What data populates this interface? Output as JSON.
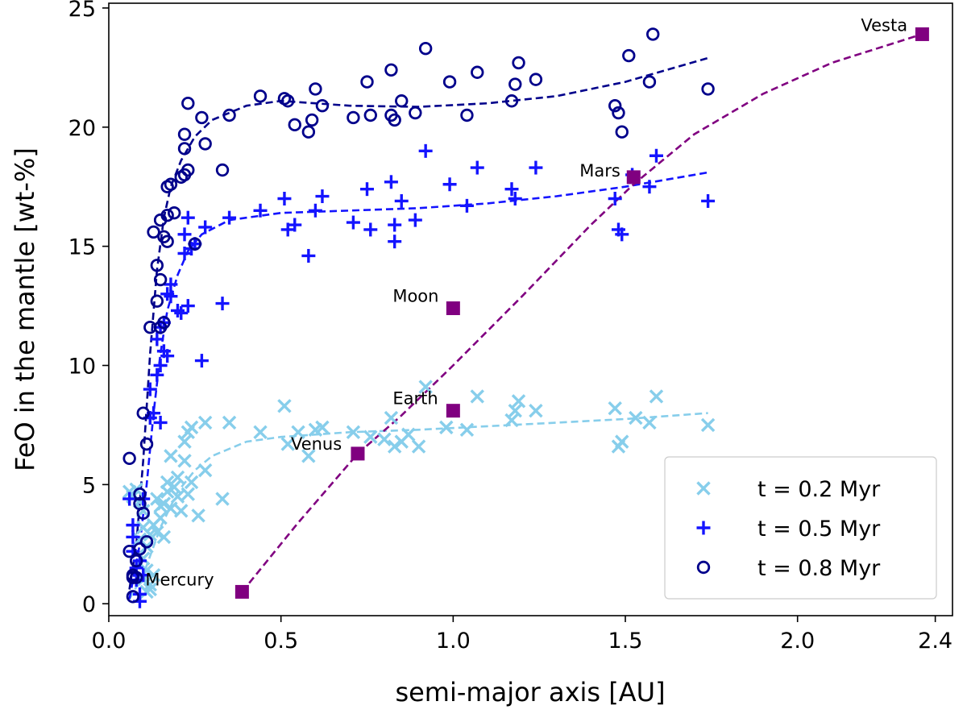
{
  "chart_data": {
    "type": "scatter",
    "xlabel": "semi-major axis [AU]",
    "ylabel": "FeO in the mantle [wt-%]",
    "xlim": [
      0.0,
      2.45
    ],
    "ylim": [
      -0.5,
      25.2
    ],
    "x_ticks": [
      0.0,
      0.5,
      1.0,
      1.5,
      2.0,
      2.4
    ],
    "x_tick_labels": [
      "0.0",
      "0.5",
      "1.0",
      "1.5",
      "2.0",
      "2.4"
    ],
    "y_ticks": [
      0,
      5,
      10,
      15,
      20,
      25
    ],
    "y_tick_labels": [
      "0",
      "5",
      "10",
      "15",
      "20",
      "25"
    ],
    "grid": false,
    "legend": {
      "placement": "bottom-right"
    },
    "series": [
      {
        "name": "t = 0.2 Myr",
        "marker": "x",
        "color": "#87ceeb",
        "points": [
          [
            0.06,
            4.7
          ],
          [
            0.07,
            4.5
          ],
          [
            0.08,
            4.8
          ],
          [
            0.09,
            4.3
          ],
          [
            0.1,
            3.9
          ],
          [
            0.1,
            3.2
          ],
          [
            0.09,
            2.7
          ],
          [
            0.11,
            2.4
          ],
          [
            0.1,
            1.9
          ],
          [
            0.11,
            1.4
          ],
          [
            0.1,
            1.0
          ],
          [
            0.12,
            0.8
          ],
          [
            0.12,
            0.6
          ],
          [
            0.13,
            1.2
          ],
          [
            0.11,
            0.5
          ],
          [
            0.12,
            2.9
          ],
          [
            0.13,
            3.3
          ],
          [
            0.14,
            4.4
          ],
          [
            0.14,
            3.0
          ],
          [
            0.15,
            3.6
          ],
          [
            0.15,
            4.1
          ],
          [
            0.16,
            2.8
          ],
          [
            0.16,
            4.2
          ],
          [
            0.17,
            5.1
          ],
          [
            0.17,
            4.7
          ],
          [
            0.18,
            6.2
          ],
          [
            0.18,
            4.0
          ],
          [
            0.19,
            4.9
          ],
          [
            0.2,
            5.3
          ],
          [
            0.2,
            4.5
          ],
          [
            0.21,
            3.9
          ],
          [
            0.22,
            6.8
          ],
          [
            0.22,
            6.0
          ],
          [
            0.23,
            7.2
          ],
          [
            0.23,
            4.6
          ],
          [
            0.24,
            7.4
          ],
          [
            0.24,
            5.1
          ],
          [
            0.26,
            3.7
          ],
          [
            0.28,
            7.6
          ],
          [
            0.28,
            5.6
          ],
          [
            0.33,
            4.4
          ],
          [
            0.35,
            7.6
          ],
          [
            0.44,
            7.2
          ],
          [
            0.51,
            8.3
          ],
          [
            0.52,
            6.7
          ],
          [
            0.55,
            7.2
          ],
          [
            0.58,
            6.2
          ],
          [
            0.6,
            7.3
          ],
          [
            0.62,
            7.4
          ],
          [
            0.71,
            7.2
          ],
          [
            0.76,
            7.0
          ],
          [
            0.8,
            6.9
          ],
          [
            0.82,
            7.8
          ],
          [
            0.83,
            6.6
          ],
          [
            0.85,
            6.8
          ],
          [
            0.87,
            7.1
          ],
          [
            0.9,
            6.6
          ],
          [
            0.92,
            9.1
          ],
          [
            0.98,
            7.4
          ],
          [
            1.04,
            7.3
          ],
          [
            1.07,
            8.7
          ],
          [
            1.17,
            7.7
          ],
          [
            1.18,
            8.1
          ],
          [
            1.19,
            8.5
          ],
          [
            1.24,
            8.1
          ],
          [
            1.47,
            8.2
          ],
          [
            1.48,
            6.6
          ],
          [
            1.49,
            6.8
          ],
          [
            1.53,
            7.8
          ],
          [
            1.57,
            7.6
          ],
          [
            1.59,
            8.7
          ],
          [
            1.74,
            7.5
          ]
        ]
      },
      {
        "name": "t = 0.5 Myr",
        "marker": "+",
        "color": "#1414ff",
        "points": [
          [
            0.06,
            4.4
          ],
          [
            0.07,
            3.3
          ],
          [
            0.07,
            2.8
          ],
          [
            0.07,
            2.2
          ],
          [
            0.08,
            1.5
          ],
          [
            0.08,
            1.0
          ],
          [
            0.09,
            0.4
          ],
          [
            0.09,
            0.1
          ],
          [
            0.09,
            1.8
          ],
          [
            0.1,
            4.4
          ],
          [
            0.1,
            1.2
          ],
          [
            0.12,
            7.8
          ],
          [
            0.12,
            9.0
          ],
          [
            0.13,
            8.0
          ],
          [
            0.14,
            11.1
          ],
          [
            0.14,
            9.6
          ],
          [
            0.15,
            7.6
          ],
          [
            0.15,
            10.0
          ],
          [
            0.15,
            11.6
          ],
          [
            0.16,
            11.8
          ],
          [
            0.16,
            10.6
          ],
          [
            0.17,
            10.4
          ],
          [
            0.17,
            13.0
          ],
          [
            0.18,
            13.4
          ],
          [
            0.18,
            12.9
          ],
          [
            0.2,
            12.3
          ],
          [
            0.21,
            12.2
          ],
          [
            0.22,
            14.7
          ],
          [
            0.22,
            15.5
          ],
          [
            0.23,
            12.5
          ],
          [
            0.23,
            16.2
          ],
          [
            0.24,
            14.9
          ],
          [
            0.25,
            15.1
          ],
          [
            0.27,
            10.2
          ],
          [
            0.28,
            15.8
          ],
          [
            0.33,
            12.6
          ],
          [
            0.35,
            16.2
          ],
          [
            0.44,
            16.5
          ],
          [
            0.51,
            17.0
          ],
          [
            0.52,
            15.7
          ],
          [
            0.54,
            15.9
          ],
          [
            0.58,
            14.6
          ],
          [
            0.6,
            16.5
          ],
          [
            0.62,
            17.1
          ],
          [
            0.71,
            16.0
          ],
          [
            0.75,
            17.4
          ],
          [
            0.76,
            15.7
          ],
          [
            0.82,
            17.7
          ],
          [
            0.83,
            15.9
          ],
          [
            0.83,
            15.2
          ],
          [
            0.85,
            16.9
          ],
          [
            0.89,
            16.1
          ],
          [
            0.92,
            19.0
          ],
          [
            0.99,
            17.6
          ],
          [
            1.04,
            16.7
          ],
          [
            1.07,
            18.3
          ],
          [
            1.17,
            17.4
          ],
          [
            1.18,
            17.0
          ],
          [
            1.24,
            18.3
          ],
          [
            1.47,
            17.0
          ],
          [
            1.48,
            15.7
          ],
          [
            1.49,
            15.5
          ],
          [
            1.52,
            18.0
          ],
          [
            1.57,
            17.5
          ],
          [
            1.59,
            18.8
          ],
          [
            1.74,
            16.9
          ]
        ]
      },
      {
        "name": "t = 0.8 Myr",
        "marker": "o",
        "color": "#00008b",
        "points": [
          [
            0.06,
            6.1
          ],
          [
            0.06,
            2.2
          ],
          [
            0.07,
            1.1
          ],
          [
            0.07,
            1.2
          ],
          [
            0.07,
            0.3
          ],
          [
            0.08,
            1.8
          ],
          [
            0.08,
            1.1
          ],
          [
            0.09,
            4.6
          ],
          [
            0.09,
            4.2
          ],
          [
            0.09,
            2.3
          ],
          [
            0.1,
            3.8
          ],
          [
            0.1,
            8.0
          ],
          [
            0.11,
            6.7
          ],
          [
            0.11,
            2.6
          ],
          [
            0.12,
            11.6
          ],
          [
            0.13,
            15.6
          ],
          [
            0.14,
            14.2
          ],
          [
            0.14,
            12.7
          ],
          [
            0.15,
            11.6
          ],
          [
            0.15,
            13.6
          ],
          [
            0.15,
            16.1
          ],
          [
            0.16,
            15.4
          ],
          [
            0.16,
            11.8
          ],
          [
            0.17,
            16.3
          ],
          [
            0.17,
            17.5
          ],
          [
            0.17,
            15.2
          ],
          [
            0.18,
            17.6
          ],
          [
            0.19,
            16.4
          ],
          [
            0.21,
            17.9
          ],
          [
            0.22,
            18.0
          ],
          [
            0.22,
            19.7
          ],
          [
            0.22,
            19.1
          ],
          [
            0.23,
            18.2
          ],
          [
            0.23,
            21.0
          ],
          [
            0.25,
            15.1
          ],
          [
            0.27,
            20.4
          ],
          [
            0.28,
            19.3
          ],
          [
            0.33,
            18.2
          ],
          [
            0.35,
            20.5
          ],
          [
            0.44,
            21.3
          ],
          [
            0.51,
            21.2
          ],
          [
            0.52,
            21.1
          ],
          [
            0.54,
            20.1
          ],
          [
            0.58,
            19.8
          ],
          [
            0.59,
            20.3
          ],
          [
            0.6,
            21.6
          ],
          [
            0.62,
            20.9
          ],
          [
            0.71,
            20.4
          ],
          [
            0.75,
            21.9
          ],
          [
            0.76,
            20.5
          ],
          [
            0.82,
            22.4
          ],
          [
            0.82,
            20.5
          ],
          [
            0.83,
            20.3
          ],
          [
            0.85,
            21.1
          ],
          [
            0.89,
            20.6
          ],
          [
            0.92,
            23.3
          ],
          [
            0.99,
            21.9
          ],
          [
            1.04,
            20.5
          ],
          [
            1.07,
            22.3
          ],
          [
            1.17,
            21.1
          ],
          [
            1.18,
            21.8
          ],
          [
            1.19,
            22.7
          ],
          [
            1.24,
            22.0
          ],
          [
            1.47,
            20.9
          ],
          [
            1.48,
            20.6
          ],
          [
            1.49,
            19.8
          ],
          [
            1.51,
            23.0
          ],
          [
            1.57,
            21.9
          ],
          [
            1.58,
            23.9
          ],
          [
            1.74,
            21.6
          ]
        ]
      }
    ],
    "planets": {
      "color": "#800080",
      "marker": "square",
      "points": [
        {
          "name": "Mercury",
          "x": 0.387,
          "y": 0.5
        },
        {
          "name": "Venus",
          "x": 0.723,
          "y": 6.3
        },
        {
          "name": "Earth",
          "x": 1.0,
          "y": 8.1
        },
        {
          "name": "Moon",
          "x": 1.0,
          "y": 12.4
        },
        {
          "name": "Mars",
          "x": 1.524,
          "y": 17.9
        },
        {
          "name": "Vesta",
          "x": 2.362,
          "y": 23.9
        }
      ]
    },
    "trend_lines": [
      {
        "series": "t = 0.2 Myr",
        "color": "#87ceeb",
        "style": "dashed",
        "points": [
          [
            0.06,
            0.2
          ],
          [
            0.1,
            1.2
          ],
          [
            0.15,
            3.2
          ],
          [
            0.2,
            4.7
          ],
          [
            0.25,
            5.6
          ],
          [
            0.3,
            6.2
          ],
          [
            0.4,
            6.8
          ],
          [
            0.5,
            7.0
          ],
          [
            0.7,
            7.2
          ],
          [
            0.9,
            7.3
          ],
          [
            1.1,
            7.45
          ],
          [
            1.3,
            7.6
          ],
          [
            1.5,
            7.75
          ],
          [
            1.74,
            8.0
          ]
        ]
      },
      {
        "series": "t = 0.5 Myr",
        "color": "#1414ff",
        "style": "dashed",
        "points": [
          [
            0.06,
            0.2
          ],
          [
            0.09,
            2.5
          ],
          [
            0.11,
            5.0
          ],
          [
            0.13,
            8.0
          ],
          [
            0.15,
            10.5
          ],
          [
            0.17,
            12.3
          ],
          [
            0.2,
            13.8
          ],
          [
            0.23,
            14.8
          ],
          [
            0.27,
            15.5
          ],
          [
            0.35,
            16.1
          ],
          [
            0.5,
            16.4
          ],
          [
            0.7,
            16.5
          ],
          [
            0.9,
            16.6
          ],
          [
            1.1,
            16.8
          ],
          [
            1.3,
            17.1
          ],
          [
            1.5,
            17.5
          ],
          [
            1.74,
            18.1
          ]
        ]
      },
      {
        "series": "t = 0.8 Myr",
        "color": "#00008b",
        "style": "dashed",
        "points": [
          [
            0.06,
            0.6
          ],
          [
            0.08,
            2.5
          ],
          [
            0.1,
            6.0
          ],
          [
            0.12,
            10.5
          ],
          [
            0.14,
            14.0
          ],
          [
            0.16,
            16.2
          ],
          [
            0.18,
            17.5
          ],
          [
            0.21,
            18.6
          ],
          [
            0.25,
            19.6
          ],
          [
            0.3,
            20.3
          ],
          [
            0.4,
            20.9
          ],
          [
            0.5,
            21.1
          ],
          [
            0.6,
            21.0
          ],
          [
            0.7,
            20.9
          ],
          [
            0.9,
            20.85
          ],
          [
            1.1,
            21.0
          ],
          [
            1.3,
            21.3
          ],
          [
            1.5,
            21.9
          ],
          [
            1.74,
            22.9
          ]
        ]
      },
      {
        "series": "planets",
        "color": "#800080",
        "style": "dashed",
        "points": [
          [
            0.387,
            0.5
          ],
          [
            0.55,
            3.4
          ],
          [
            0.723,
            6.3
          ],
          [
            0.85,
            7.9
          ],
          [
            1.0,
            10.0
          ],
          [
            1.2,
            12.9
          ],
          [
            1.4,
            15.9
          ],
          [
            1.524,
            17.6
          ],
          [
            1.7,
            19.7
          ],
          [
            1.9,
            21.4
          ],
          [
            2.1,
            22.7
          ],
          [
            2.362,
            23.9
          ]
        ]
      }
    ]
  }
}
